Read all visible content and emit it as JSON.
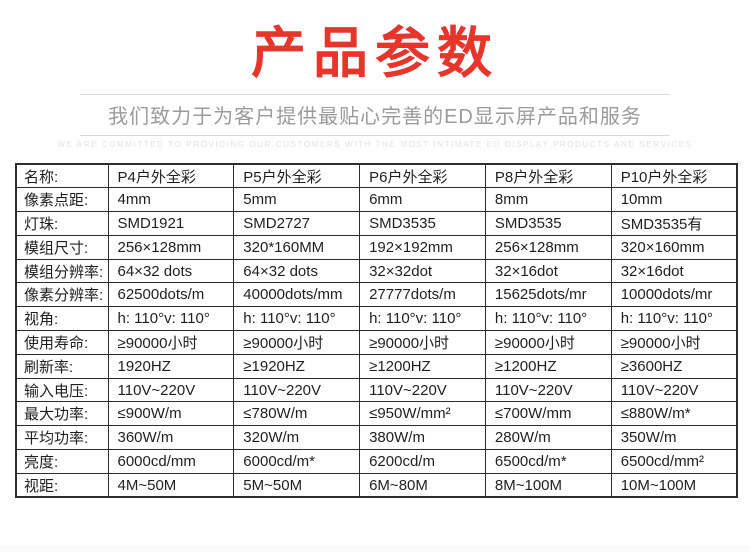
{
  "header": {
    "title": "产品参数",
    "subtitle": "我们致力于为客户提供最贴心完善的ED显示屏产品和服务",
    "tagline": "WE ARE COMMITTED TO PROVIDING OUR CUSTOMERS WITH THE MOST INTIMATE ED DISPLAY PRODUCTS AND SERVICES"
  },
  "colors": {
    "accent_red": "#e6352b",
    "table_border": "#2d2d2d",
    "subtitle_gray": "#9b9b9b"
  },
  "table": {
    "columns": [
      "名称:",
      "P4户外全彩",
      "P5户外全彩",
      "P6户外全彩",
      "P8户外全彩",
      "P10户外全彩"
    ],
    "rows": [
      {
        "label": "像素点距:",
        "values": [
          "4mm",
          "5mm",
          "6mm",
          "8mm",
          "10mm"
        ]
      },
      {
        "label": "灯珠:",
        "values": [
          "SMD1921",
          "SMD2727",
          "SMD3535",
          "SMD3535",
          "SMD3535有"
        ]
      },
      {
        "label": "模组尺寸:",
        "values": [
          "256×128mm",
          "320*160MM",
          "192×192mm",
          "256×128mm",
          "320×160mm"
        ]
      },
      {
        "label": "模组分辨率:",
        "values": [
          "64×32 dots",
          "64×32 dots",
          "32×32dot",
          "32×16dot",
          "32×16dot"
        ]
      },
      {
        "label": "像素分辨率:",
        "values": [
          "62500dots/m",
          "40000dots/mm",
          "27777dots/m",
          "15625dots/mr",
          "10000dots/mr"
        ]
      },
      {
        "label": "视角:",
        "values": [
          "h: 110°v: 110°",
          "h: 110°v: 110°",
          "h: 110°v: 110°",
          "h: 110°v: 110°",
          "h: 110°v: 110°"
        ]
      },
      {
        "label": "使用寿命:",
        "values": [
          "≥90000小时",
          "≥90000小时",
          "≥90000小时",
          "≥90000小时",
          "≥90000小时"
        ]
      },
      {
        "label": "刷新率:",
        "values": [
          "1920HZ",
          "≥1920HZ",
          "≥1200HZ",
          "≥1200HZ",
          "≥3600HZ"
        ]
      },
      {
        "label": "输入电压:",
        "values": [
          "110V~220V",
          "110V~220V",
          "110V~220V",
          "110V~220V",
          "110V~220V"
        ]
      },
      {
        "label": "最大功率:",
        "values": [
          "≤900W/m",
          "≤780W/m",
          "≤950W/mm²",
          "≤700W/mm",
          "≤880W/m*"
        ]
      },
      {
        "label": "平均功率:",
        "values": [
          "360W/m",
          "320W/m",
          "380W/m",
          "280W/m",
          "350W/m"
        ]
      },
      {
        "label": "亮度:",
        "values": [
          "6000cd/mm",
          "6000cd/m*",
          "6200cd/m",
          "6500cd/m*",
          "6500cd/mm²"
        ]
      },
      {
        "label": "视距:",
        "values": [
          "4M~50M",
          "5M~50M",
          "6M~80M",
          "8M~100M",
          "10M~100M"
        ]
      }
    ]
  }
}
